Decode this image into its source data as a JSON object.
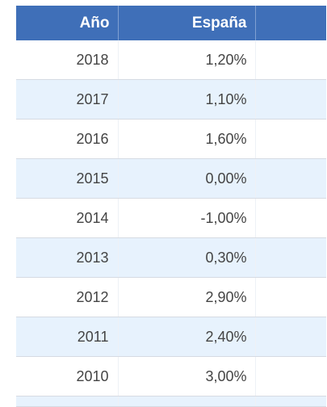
{
  "table": {
    "headers": [
      "Año",
      "España",
      ""
    ],
    "rows": [
      {
        "year": "2018",
        "spain": "1,20%"
      },
      {
        "year": "2017",
        "spain": "1,10%"
      },
      {
        "year": "2016",
        "spain": "1,60%"
      },
      {
        "year": "2015",
        "spain": "0,00%"
      },
      {
        "year": "2014",
        "spain": "-1,00%"
      },
      {
        "year": "2013",
        "spain": "0,30%"
      },
      {
        "year": "2012",
        "spain": "2,90%"
      },
      {
        "year": "2011",
        "spain": "2,40%"
      },
      {
        "year": "2010",
        "spain": "3,00%"
      }
    ]
  }
}
